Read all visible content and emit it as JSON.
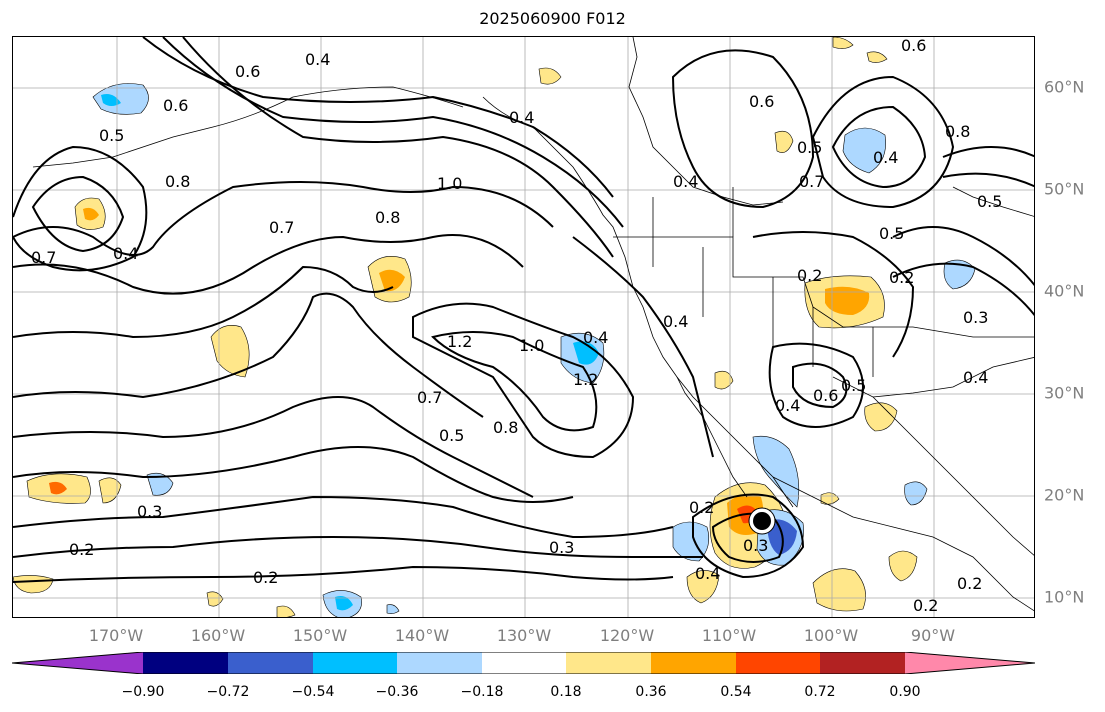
{
  "title": "2025060900 F012",
  "lon_labels": [
    "170°W",
    "160°W",
    "150°W",
    "140°W",
    "130°W",
    "120°W",
    "110°W",
    "100°W",
    "90°W"
  ],
  "lat_labels": [
    "60°N",
    "50°N",
    "40°N",
    "30°N",
    "20°N",
    "10°N"
  ],
  "contour_labels": [
    "0.4",
    "0.6",
    "0.6",
    "0.5",
    "0.8",
    "0.7",
    "0.4",
    "0.7",
    "0.8",
    "1.0",
    "0.4",
    "1.2",
    "1.0",
    "1.2",
    "0.5",
    "0.4",
    "0.4",
    "0.7",
    "0.5",
    "0.8",
    "0.3",
    "0.2",
    "0.2",
    "0.3",
    "0.2",
    "0.3",
    "0.4",
    "0.2",
    "0.4",
    "0.6",
    "0.5",
    "0.2",
    "0.3",
    "0.4",
    "0.5",
    "0.7",
    "0.4",
    "0.6",
    "0.5",
    "0.8",
    "0.6",
    "0.4",
    "0.2",
    "0.2"
  ],
  "colorbar": {
    "ticks": [
      "−0.90",
      "−0.72",
      "−0.54",
      "−0.36",
      "−0.18",
      "0.18",
      "0.36",
      "0.54",
      "0.72",
      "0.90"
    ],
    "colors": [
      "#9a33cc",
      "#000080",
      "#3a5fcd",
      "#00bfff",
      "#add8ff",
      "#ffffff",
      "#ffe78a",
      "#ffa500",
      "#ff4500",
      "#b22222",
      "#ff88aa"
    ]
  },
  "storm_marker": "storm-center-marker"
}
